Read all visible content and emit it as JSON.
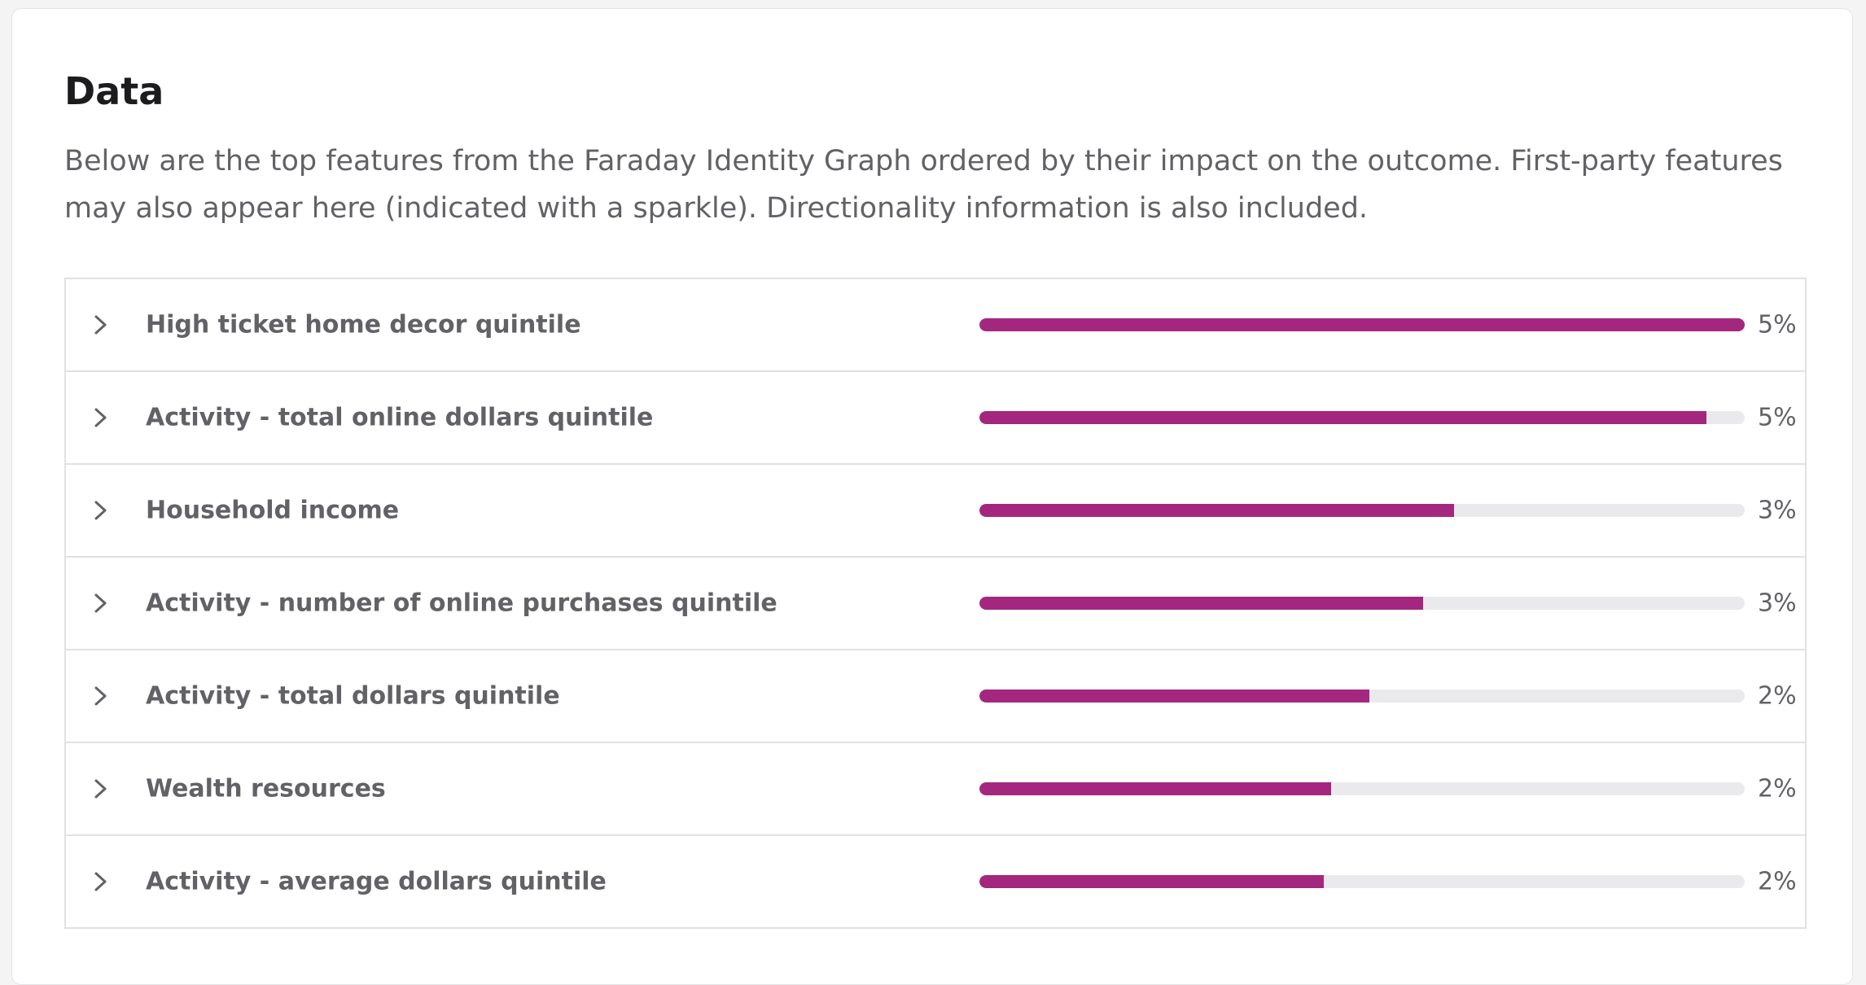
{
  "section": {
    "title": "Data",
    "description": "Below are the top features from the Faraday Identity Graph ordered by their impact on the outcome. First-party features may also appear here (indicated with a sparkle). Directionality information is also included."
  },
  "colors": {
    "bar_fill": "#a3277f",
    "bar_track": "#eaeaec"
  },
  "icons": {
    "row_toggle": "chevron-right-icon"
  },
  "features": [
    {
      "label": "High ticket home decor quintile",
      "percent": "5%",
      "importance": 1.0
    },
    {
      "label": "Activity - total online dollars quintile",
      "percent": "5%",
      "importance": 0.95
    },
    {
      "label": "Household income",
      "percent": "3%",
      "importance": 0.62
    },
    {
      "label": "Activity - number of online purchases quintile",
      "percent": "3%",
      "importance": 0.58
    },
    {
      "label": "Activity - total dollars quintile",
      "percent": "2%",
      "importance": 0.51
    },
    {
      "label": "Wealth resources",
      "percent": "2%",
      "importance": 0.46
    },
    {
      "label": "Activity - average dollars quintile",
      "percent": "2%",
      "importance": 0.45
    }
  ]
}
